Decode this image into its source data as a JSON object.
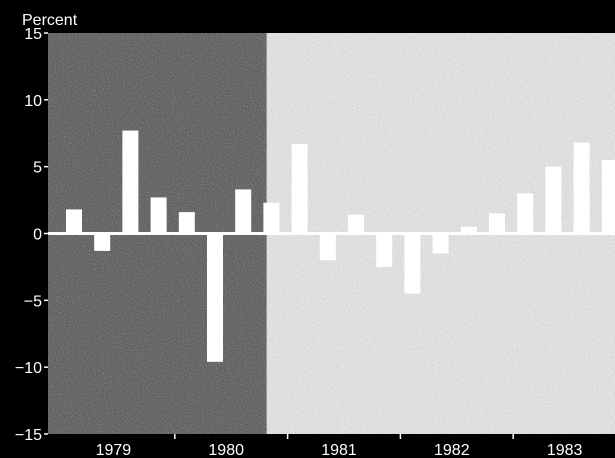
{
  "chart_data": {
    "type": "bar",
    "ylabel": "Percent",
    "ylim": [
      -15,
      15
    ],
    "yticks": [
      15,
      10,
      5,
      0,
      -5,
      -10,
      -15
    ],
    "year_labels": [
      "1979",
      "1980",
      "1981",
      "1982",
      "1983"
    ],
    "quarters": [
      "1979Q1",
      "1979Q2",
      "1979Q3",
      "1979Q4",
      "1980Q1",
      "1980Q2",
      "1980Q3",
      "1980Q4",
      "1981Q1",
      "1981Q2",
      "1981Q3",
      "1981Q4",
      "1982Q1",
      "1982Q2",
      "1982Q3",
      "1982Q4",
      "1983Q1",
      "1983Q2",
      "1983Q3",
      "1983Q4"
    ],
    "values": [
      1.8,
      -1.3,
      7.7,
      2.7,
      1.6,
      -9.6,
      3.3,
      2.3,
      6.7,
      -2.0,
      1.4,
      -2.5,
      -4.5,
      -1.5,
      0.5,
      1.5,
      3.0,
      5.0,
      6.8,
      5.5
    ],
    "shaded_periods": [
      {
        "label": "recession-shading",
        "start": "1979Q1",
        "end": "1980Q4"
      }
    ],
    "grid": false,
    "colors": {
      "background": "#000000",
      "bar": "#ffffff",
      "shade": "#4a4a4a",
      "plot": "#ececec"
    }
  }
}
